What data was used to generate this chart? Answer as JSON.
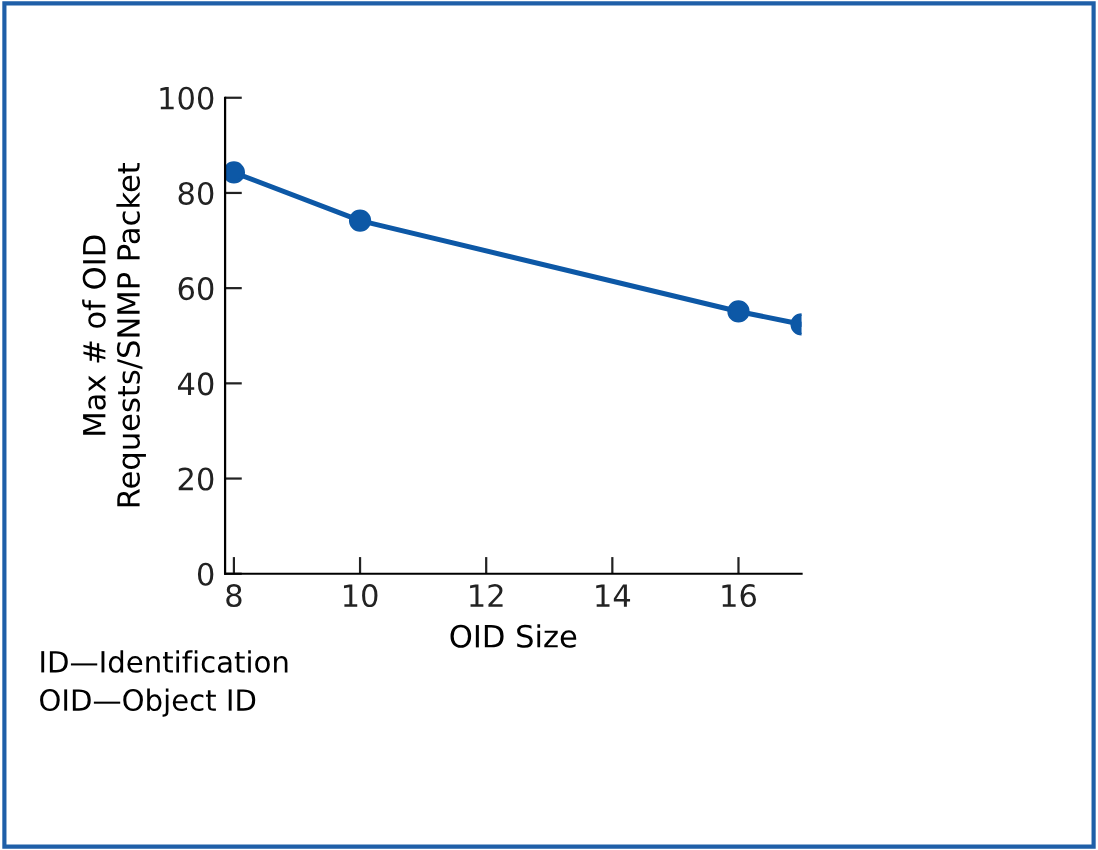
{
  "chart_data": {
    "type": "line",
    "xlabel": "OID Size",
    "ylabel": "Max # of OID\nRequests/SNMP Packet",
    "x": [
      8,
      10,
      16,
      17
    ],
    "series": [
      {
        "color": "#0d58a6",
        "values": [
          84.3,
          74.2,
          55.1,
          52.4
        ]
      }
    ],
    "xlim": [
      7.86,
      17
    ],
    "xticks": [
      8,
      10,
      12,
      14,
      16
    ],
    "ylim": [
      0,
      100
    ],
    "yticks": [
      0,
      20,
      40,
      60,
      80,
      100
    ],
    "marker": "circle",
    "line_style": "solid",
    "grid": false,
    "legend": false,
    "annotations": [
      "ID—Identification",
      "OID—Object ID"
    ]
  }
}
